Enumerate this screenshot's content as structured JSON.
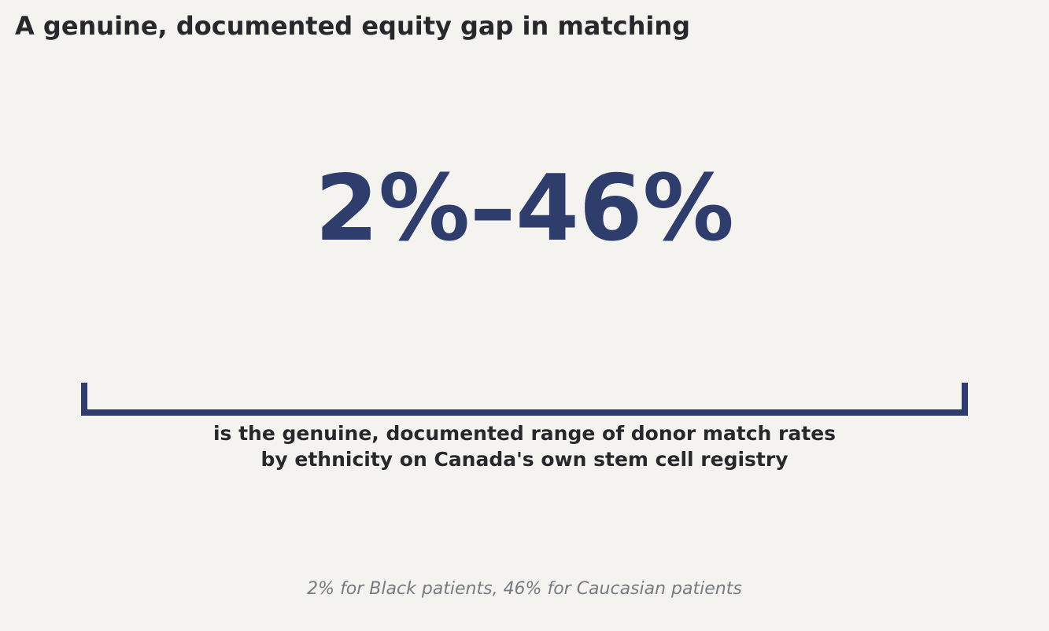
{
  "header": {
    "title": "A genuine, documented equity gap in matching"
  },
  "stat": {
    "value": "2%–46%",
    "description_line1": "is the genuine, documented range of donor match rates",
    "description_line2": "by ethnicity on Canada's own stem cell registry"
  },
  "footnote": "2% for Black patients, 46% for Caucasian patients"
}
